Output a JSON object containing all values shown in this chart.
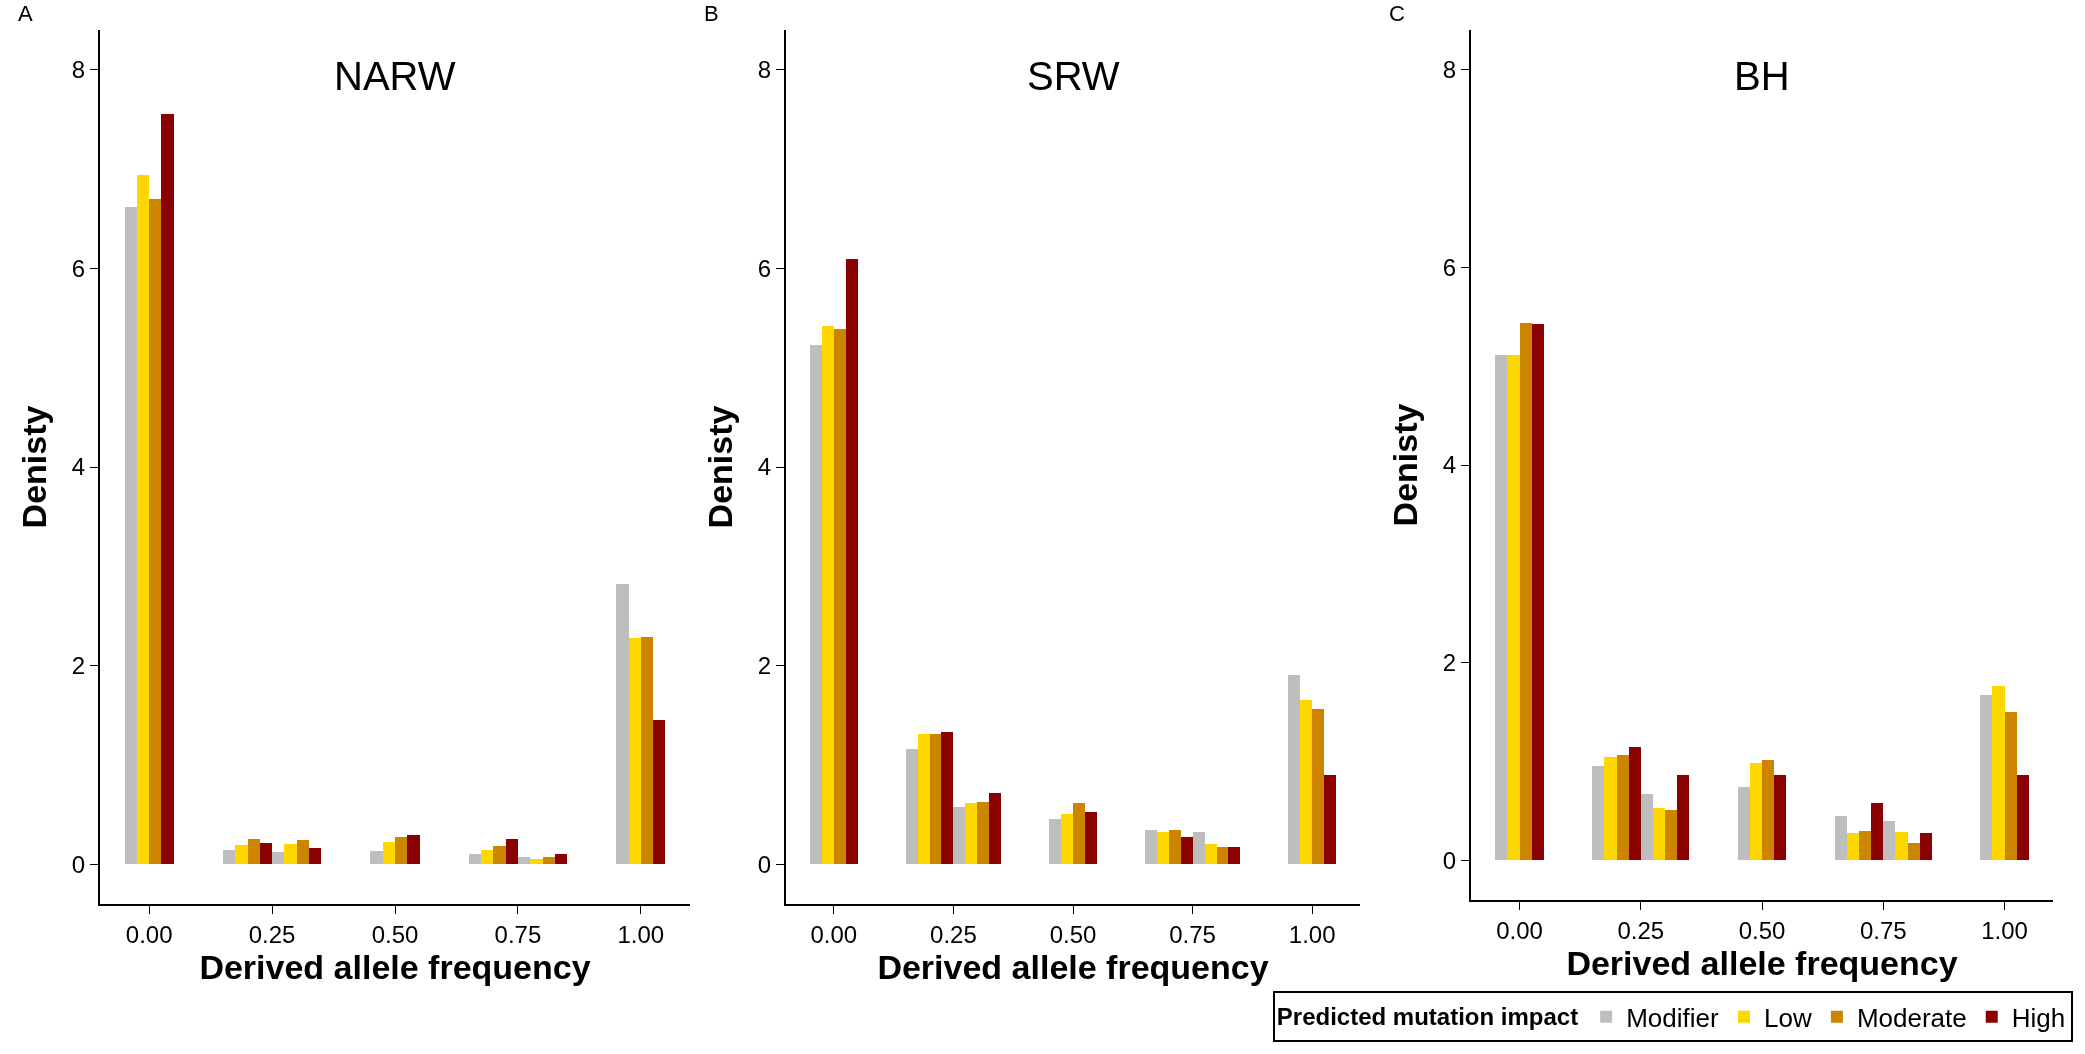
{
  "chart_data": [
    {
      "type": "bar",
      "title": "NARW",
      "annotations": [
        "A"
      ],
      "xlabel": "Derived allele frequency",
      "ylabel": "Denisty",
      "x": [
        0,
        0.1,
        0.2,
        0.3,
        0.4,
        0.5,
        0.6,
        0.7,
        0.8,
        0.9,
        1.0
      ],
      "xlim": [
        -0.1,
        1.1
      ],
      "xticks": [
        {
          "value": 0,
          "label": "0.00"
        },
        {
          "value": 0.25,
          "label": "0.25"
        },
        {
          "value": 0.5,
          "label": "0.50"
        },
        {
          "value": 0.75,
          "label": "0.75"
        },
        {
          "value": 1,
          "label": "1.00"
        }
      ],
      "ylim": [
        -0.4,
        8.4
      ],
      "yticks": [
        0,
        2,
        4,
        6,
        8
      ],
      "grid": false,
      "legend": false,
      "series": [
        {
          "color": "#bebebe",
          "values": [
            6.62,
            0,
            0.14,
            0.12,
            0,
            0.13,
            0,
            0.1,
            0.07,
            0,
            2.82
          ]
        },
        {
          "color": "#ffd700",
          "values": [
            6.94,
            0,
            0.19,
            0.2,
            0,
            0.22,
            0,
            0.14,
            0.05,
            0,
            2.28
          ]
        },
        {
          "color": "#cd8500",
          "values": [
            6.7,
            0,
            0.25,
            0.24,
            0,
            0.27,
            0,
            0.18,
            0.07,
            0,
            2.29
          ]
        },
        {
          "color": "#8b0000",
          "values": [
            7.55,
            0,
            0.21,
            0.16,
            0,
            0.29,
            0,
            0.25,
            0.1,
            0,
            1.45
          ]
        }
      ]
    },
    {
      "type": "bar",
      "title": "SRW",
      "annotations": [
        "B"
      ],
      "xlabel": "Derived allele frequency",
      "ylabel": "Denisty",
      "x": [
        0,
        0.1,
        0.2,
        0.3,
        0.4,
        0.5,
        0.6,
        0.7,
        0.8,
        0.9,
        1.0
      ],
      "xlim": [
        -0.1,
        1.1
      ],
      "xticks": [
        {
          "value": 0,
          "label": "0.00"
        },
        {
          "value": 0.25,
          "label": "0.25"
        },
        {
          "value": 0.5,
          "label": "0.50"
        },
        {
          "value": 0.75,
          "label": "0.75"
        },
        {
          "value": 1,
          "label": "1.00"
        }
      ],
      "ylim": [
        -0.4,
        8.4
      ],
      "yticks": [
        0,
        2,
        4,
        6,
        8
      ],
      "grid": false,
      "legend": false,
      "series": [
        {
          "color": "#bebebe",
          "values": [
            5.23,
            0,
            1.16,
            0.58,
            0,
            0.46,
            0,
            0.35,
            0.32,
            0,
            1.91
          ]
        },
        {
          "color": "#ffd700",
          "values": [
            5.42,
            0,
            1.31,
            0.62,
            0,
            0.51,
            0,
            0.33,
            0.2,
            0,
            1.65
          ]
        },
        {
          "color": "#cd8500",
          "values": [
            5.39,
            0,
            1.31,
            0.63,
            0,
            0.62,
            0,
            0.35,
            0.17,
            0,
            1.56
          ]
        },
        {
          "color": "#8b0000",
          "values": [
            6.09,
            0,
            1.33,
            0.72,
            0,
            0.53,
            0,
            0.27,
            0.17,
            0,
            0.9
          ]
        }
      ]
    },
    {
      "type": "bar",
      "title": "BH",
      "annotations": [
        "C"
      ],
      "xlabel": "Derived allele frequency",
      "ylabel": "Denisty",
      "legend_title": "Predicted mutation impact",
      "x": [
        0,
        0.1,
        0.2,
        0.3,
        0.4,
        0.5,
        0.6,
        0.7,
        0.8,
        0.9,
        1.0
      ],
      "xlim": [
        -0.1,
        1.1
      ],
      "xticks": [
        {
          "value": 0,
          "label": "0.00"
        },
        {
          "value": 0.25,
          "label": "0.25"
        },
        {
          "value": 0.5,
          "label": "0.50"
        },
        {
          "value": 0.75,
          "label": "0.75"
        },
        {
          "value": 1,
          "label": "1.00"
        }
      ],
      "ylim": [
        -0.4,
        8.4
      ],
      "yticks": [
        0,
        2,
        4,
        6,
        8
      ],
      "grid": false,
      "legend": "bottom right",
      "series": [
        {
          "name": "Modifier",
          "color": "#bebebe",
          "values": [
            5.11,
            0,
            0.96,
            0.67,
            0,
            0.74,
            0,
            0.45,
            0.4,
            0,
            1.67
          ]
        },
        {
          "name": "Low",
          "color": "#ffd700",
          "values": [
            5.11,
            0,
            1.05,
            0.53,
            0,
            0.99,
            0,
            0.28,
            0.29,
            0,
            1.76
          ]
        },
        {
          "name": "Moderate",
          "color": "#cd8500",
          "values": [
            5.44,
            0,
            1.07,
            0.51,
            0,
            1.02,
            0,
            0.3,
            0.18,
            0,
            1.5
          ]
        },
        {
          "name": "High",
          "color": "#8b0000",
          "values": [
            5.43,
            0,
            1.15,
            0.86,
            0,
            0.86,
            0,
            0.58,
            0.28,
            0,
            0.86
          ]
        }
      ]
    }
  ]
}
